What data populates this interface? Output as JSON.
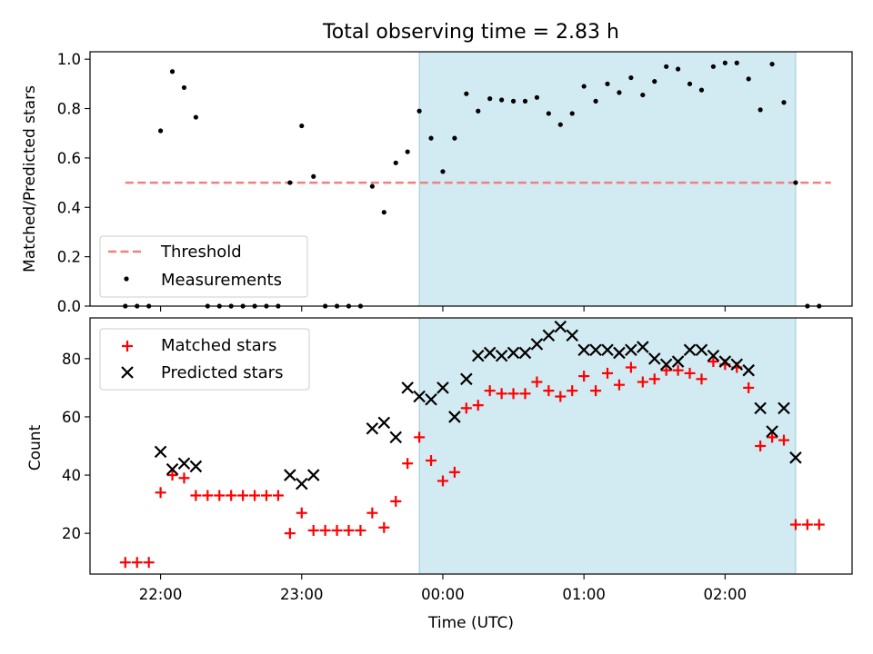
{
  "chart_data": [
    {
      "type": "scatter",
      "title": "Total observing time = 2.83 h",
      "xlabel": "",
      "ylabel": "Matched/Predicted stars",
      "ylim": [
        0,
        1.03
      ],
      "yticks": [
        "0.0",
        "0.2",
        "0.4",
        "0.6",
        "0.8",
        "1.0"
      ],
      "legend_position": "lower-left",
      "highlight_span": [
        "23:50",
        "02:30"
      ],
      "threshold": {
        "name": "Threshold",
        "value": 0.5,
        "x_range": [
          "21:45",
          "02:45"
        ],
        "color": "#f08080"
      },
      "series": [
        {
          "name": "Measurements",
          "color": "#000000",
          "marker": "dot",
          "points": [
            [
              "21:45",
              0.0
            ],
            [
              "21:50",
              0.0
            ],
            [
              "21:55",
              0.0
            ],
            [
              "22:00",
              0.71
            ],
            [
              "22:05",
              0.95
            ],
            [
              "22:10",
              0.885
            ],
            [
              "22:15",
              0.765
            ],
            [
              "22:20",
              0.0
            ],
            [
              "22:25",
              0.0
            ],
            [
              "22:30",
              0.0
            ],
            [
              "22:35",
              0.0
            ],
            [
              "22:40",
              0.0
            ],
            [
              "22:45",
              0.0
            ],
            [
              "22:50",
              0.0
            ],
            [
              "22:55",
              0.5
            ],
            [
              "23:00",
              0.73
            ],
            [
              "23:05",
              0.525
            ],
            [
              "23:10",
              0.0
            ],
            [
              "23:15",
              0.0
            ],
            [
              "23:20",
              0.0
            ],
            [
              "23:25",
              0.0
            ],
            [
              "23:30",
              0.485
            ],
            [
              "23:35",
              0.38
            ],
            [
              "23:40",
              0.58
            ],
            [
              "23:45",
              0.625
            ],
            [
              "23:50",
              0.79
            ],
            [
              "23:55",
              0.68
            ],
            [
              "00:00",
              0.545
            ],
            [
              "00:05",
              0.68
            ],
            [
              "00:10",
              0.86
            ],
            [
              "00:15",
              0.79
            ],
            [
              "00:20",
              0.84
            ],
            [
              "00:25",
              0.835
            ],
            [
              "00:30",
              0.83
            ],
            [
              "00:35",
              0.83
            ],
            [
              "00:40",
              0.845
            ],
            [
              "00:45",
              0.78
            ],
            [
              "00:50",
              0.735
            ],
            [
              "00:55",
              0.78
            ],
            [
              "01:00",
              0.89
            ],
            [
              "01:05",
              0.83
            ],
            [
              "01:10",
              0.9
            ],
            [
              "01:15",
              0.865
            ],
            [
              "01:20",
              0.925
            ],
            [
              "01:25",
              0.855
            ],
            [
              "01:30",
              0.91
            ],
            [
              "01:35",
              0.97
            ],
            [
              "01:40",
              0.96
            ],
            [
              "01:45",
              0.9
            ],
            [
              "01:50",
              0.875
            ],
            [
              "01:55",
              0.97
            ],
            [
              "02:00",
              0.985
            ],
            [
              "02:05",
              0.985
            ],
            [
              "02:10",
              0.92
            ],
            [
              "02:15",
              0.795
            ],
            [
              "02:20",
              0.98
            ],
            [
              "02:25",
              0.825
            ],
            [
              "02:30",
              0.5
            ],
            [
              "02:35",
              0.0
            ],
            [
              "02:40",
              0.0
            ]
          ]
        }
      ]
    },
    {
      "type": "scatter",
      "title": "",
      "xlabel": "Time (UTC)",
      "ylabel": "Count",
      "ylim": [
        6,
        94
      ],
      "yticks": [
        "20",
        "40",
        "60",
        "80"
      ],
      "xticks": [
        "22:00",
        "23:00",
        "00:00",
        "01:00",
        "02:00"
      ],
      "legend_position": "upper-left",
      "highlight_span": [
        "23:50",
        "02:30"
      ],
      "series": [
        {
          "name": "Matched stars",
          "color": "#ff0000",
          "marker": "plus",
          "points": [
            [
              "21:45",
              10
            ],
            [
              "21:50",
              10
            ],
            [
              "21:55",
              10
            ],
            [
              "22:00",
              34
            ],
            [
              "22:05",
              40
            ],
            [
              "22:10",
              39
            ],
            [
              "22:15",
              33
            ],
            [
              "22:20",
              33
            ],
            [
              "22:25",
              33
            ],
            [
              "22:30",
              33
            ],
            [
              "22:35",
              33
            ],
            [
              "22:40",
              33
            ],
            [
              "22:45",
              33
            ],
            [
              "22:50",
              33
            ],
            [
              "22:55",
              20
            ],
            [
              "23:00",
              27
            ],
            [
              "23:05",
              21
            ],
            [
              "23:10",
              21
            ],
            [
              "23:15",
              21
            ],
            [
              "23:20",
              21
            ],
            [
              "23:25",
              21
            ],
            [
              "23:30",
              27
            ],
            [
              "23:35",
              22
            ],
            [
              "23:40",
              31
            ],
            [
              "23:45",
              44
            ],
            [
              "23:50",
              53
            ],
            [
              "23:55",
              45
            ],
            [
              "00:00",
              38
            ],
            [
              "00:05",
              41
            ],
            [
              "00:10",
              63
            ],
            [
              "00:15",
              64
            ],
            [
              "00:20",
              69
            ],
            [
              "00:25",
              68
            ],
            [
              "00:30",
              68
            ],
            [
              "00:35",
              68
            ],
            [
              "00:40",
              72
            ],
            [
              "00:45",
              69
            ],
            [
              "00:50",
              67
            ],
            [
              "00:55",
              69
            ],
            [
              "01:00",
              74
            ],
            [
              "01:05",
              69
            ],
            [
              "01:10",
              75
            ],
            [
              "01:15",
              71
            ],
            [
              "01:20",
              77
            ],
            [
              "01:25",
              72
            ],
            [
              "01:30",
              73
            ],
            [
              "01:35",
              76
            ],
            [
              "01:40",
              76
            ],
            [
              "01:45",
              75
            ],
            [
              "01:50",
              73
            ],
            [
              "01:55",
              79
            ],
            [
              "02:00",
              78
            ],
            [
              "02:05",
              77
            ],
            [
              "02:10",
              70
            ],
            [
              "02:15",
              50
            ],
            [
              "02:20",
              53
            ],
            [
              "02:25",
              52
            ],
            [
              "02:30",
              23
            ],
            [
              "02:35",
              23
            ],
            [
              "02:40",
              23
            ]
          ]
        },
        {
          "name": "Predicted stars",
          "color": "#000000",
          "marker": "x",
          "points": [
            [
              "22:00",
              48
            ],
            [
              "22:05",
              42
            ],
            [
              "22:10",
              44
            ],
            [
              "22:15",
              43
            ],
            [
              "22:55",
              40
            ],
            [
              "23:00",
              37
            ],
            [
              "23:05",
              40
            ],
            [
              "23:30",
              56
            ],
            [
              "23:35",
              58
            ],
            [
              "23:40",
              53
            ],
            [
              "23:45",
              70
            ],
            [
              "23:50",
              67
            ],
            [
              "23:55",
              66
            ],
            [
              "00:00",
              70
            ],
            [
              "00:05",
              60
            ],
            [
              "00:10",
              73
            ],
            [
              "00:15",
              81
            ],
            [
              "00:20",
              82
            ],
            [
              "00:25",
              81
            ],
            [
              "00:30",
              82
            ],
            [
              "00:35",
              82
            ],
            [
              "00:40",
              85
            ],
            [
              "00:45",
              88
            ],
            [
              "00:50",
              91
            ],
            [
              "00:55",
              88
            ],
            [
              "01:00",
              83
            ],
            [
              "01:05",
              83
            ],
            [
              "01:10",
              83
            ],
            [
              "01:15",
              82
            ],
            [
              "01:20",
              83
            ],
            [
              "01:25",
              84
            ],
            [
              "01:30",
              80
            ],
            [
              "01:35",
              78
            ],
            [
              "01:40",
              79
            ],
            [
              "01:45",
              83
            ],
            [
              "01:50",
              83
            ],
            [
              "01:55",
              81
            ],
            [
              "02:00",
              79
            ],
            [
              "02:05",
              78
            ],
            [
              "02:10",
              76
            ],
            [
              "02:15",
              63
            ],
            [
              "02:20",
              55
            ],
            [
              "02:25",
              63
            ],
            [
              "02:30",
              46
            ]
          ]
        }
      ]
    }
  ]
}
